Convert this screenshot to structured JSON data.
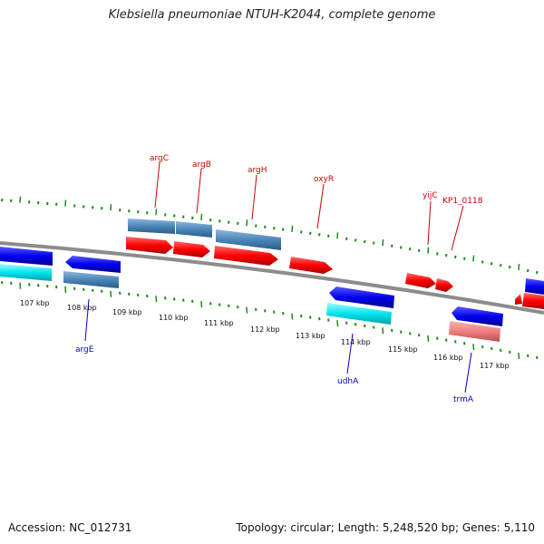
{
  "title": "Klebsiella pneumoniae NTUH-K2044, complete genome",
  "accession_text": "Accession: NC_012731",
  "summary_text": "Topology: circular; Length: 5,248,520 bp; Genes: 5,110",
  "tick_labels": [
    "107 kbp",
    "108 kbp",
    "109 kbp",
    "110 kbp",
    "111 kbp",
    "112 kbp",
    "113 kbp",
    "114 kbp",
    "115 kbp",
    "116 kbp",
    "117 kbp"
  ],
  "top_gene_labels": [
    "argC",
    "argB",
    "argH",
    "oxyR",
    "yijC",
    "KP1_0118"
  ],
  "bottom_gene_labels": [
    "argE",
    "udhA",
    "trmA"
  ],
  "colors": {
    "backbone": "#8c8c8c",
    "tick": "#1f8a1f",
    "cds_forward": "#ff0000",
    "gene_forward": "#4a86b8",
    "cds_reverse": "#0000ee",
    "gene_reverse_steel": "#4a86b8",
    "gene_reverse_cyan": "#00e5ee",
    "gene_reverse_pink": "#f08080",
    "label_top": "#cc0000",
    "label_bottom": "#0000cc"
  }
}
